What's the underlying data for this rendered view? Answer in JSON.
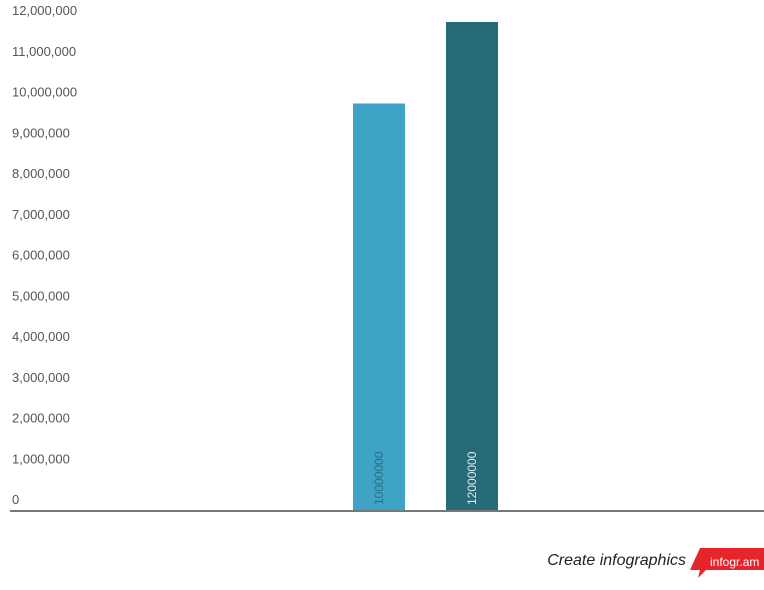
{
  "chart_data": {
    "type": "bar",
    "categories": [
      "",
      ""
    ],
    "values": [
      10000000,
      12000000
    ],
    "data_labels": [
      "10000000",
      "12000000"
    ],
    "colors": [
      "#3fa3c6",
      "#276b78"
    ],
    "ylim": [
      0,
      12000000
    ],
    "yticks": [
      0,
      1000000,
      2000000,
      3000000,
      4000000,
      5000000,
      6000000,
      7000000,
      8000000,
      9000000,
      10000000,
      11000000,
      12000000
    ],
    "ytick_labels": [
      "0",
      "1,000,000",
      "2,000,000",
      "3,000,000",
      "4,000,000",
      "5,000,000",
      "6,000,000",
      "7,000,000",
      "8,000,000",
      "9,000,000",
      "10,000,000",
      "11,000,000",
      "12,000,000"
    ],
    "grid": false,
    "title": "",
    "xlabel": "",
    "ylabel": ""
  },
  "footer": {
    "cta_text": "Create infographics",
    "logo_text": "infogr.am",
    "logo_color": "#e5252b"
  }
}
